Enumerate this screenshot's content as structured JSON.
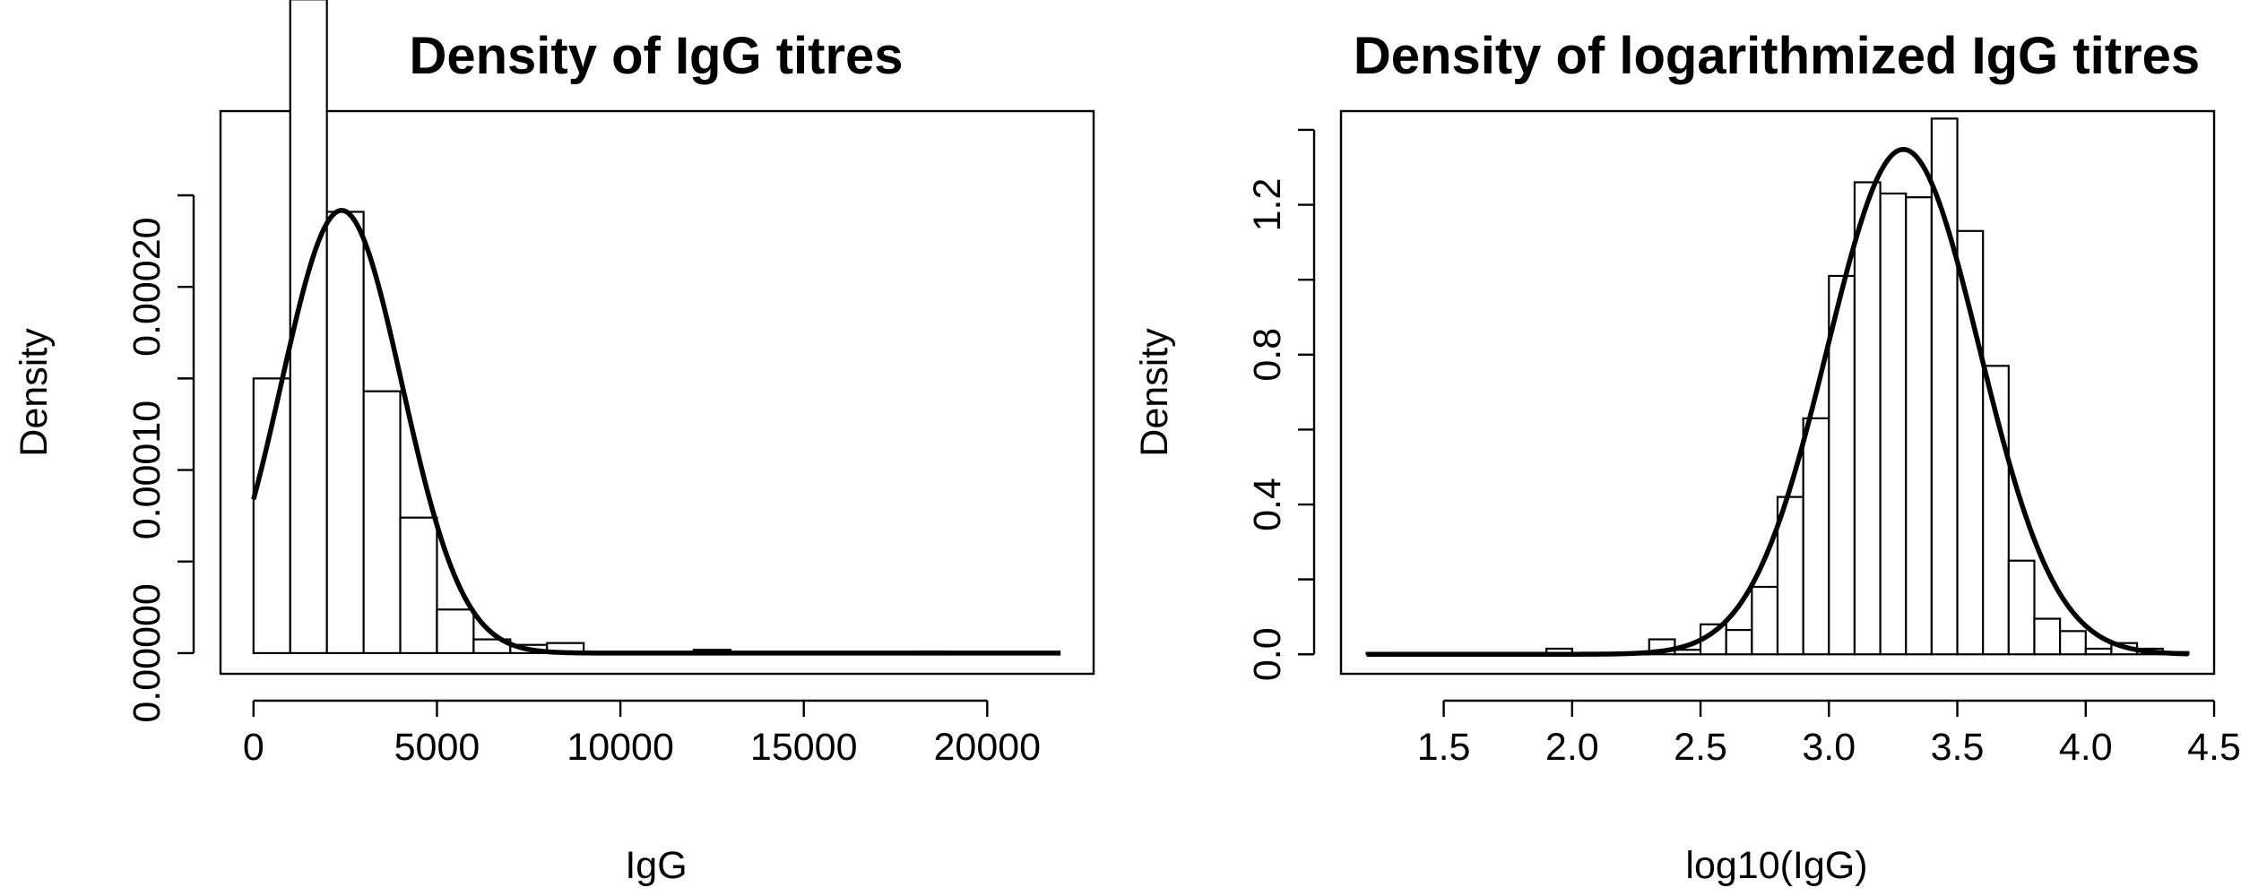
{
  "chart_data": [
    {
      "type": "bar",
      "title": "Density of IgG titres",
      "xlabel": "IgG",
      "ylabel": "Density",
      "xlim": [
        -900,
        22900
      ],
      "ylim": [
        -1.13e-05,
        0.000296
      ],
      "x_ticks": [
        0,
        5000,
        10000,
        15000,
        20000
      ],
      "x_tick_labels": [
        "0",
        "5000",
        "10000",
        "15000",
        "20000"
      ],
      "y_ticks": [
        0,
        5e-05,
        0.0001,
        0.00015,
        0.0002,
        0.00025
      ],
      "y_tick_labels": [
        "0.00000",
        "",
        "0.00010",
        "",
        "0.00020",
        ""
      ],
      "bins": [
        {
          "x0": 0,
          "x1": 1000,
          "density": 0.00015
        },
        {
          "x0": 1000,
          "x1": 2000,
          "density": 0.000357
        },
        {
          "x0": 2000,
          "x1": 3000,
          "density": 0.000241
        },
        {
          "x0": 3000,
          "x1": 4000,
          "density": 0.000143
        },
        {
          "x0": 4000,
          "x1": 5000,
          "density": 7.4e-05
        },
        {
          "x0": 5000,
          "x1": 6000,
          "density": 2.38e-05
        },
        {
          "x0": 6000,
          "x1": 7000,
          "density": 7.5e-06
        },
        {
          "x0": 7000,
          "x1": 8000,
          "density": 4.5e-06
        },
        {
          "x0": 8000,
          "x1": 9000,
          "density": 5.5e-06
        },
        {
          "x0": 9000,
          "x1": 10000,
          "density": 5e-07
        },
        {
          "x0": 10000,
          "x1": 11000,
          "density": 3e-07
        },
        {
          "x0": 11000,
          "x1": 12000,
          "density": 3e-07
        },
        {
          "x0": 12000,
          "x1": 13000,
          "density": 1.8e-06
        },
        {
          "x0": 13000,
          "x1": 14000,
          "density": 3e-07
        },
        {
          "x0": 14000,
          "x1": 15000,
          "density": 3e-07
        },
        {
          "x0": 15000,
          "x1": 16000,
          "density": 3e-07
        },
        {
          "x0": 16000,
          "x1": 17000,
          "density": 3e-07
        },
        {
          "x0": 17000,
          "x1": 18000,
          "density": 3e-07
        },
        {
          "x0": 18000,
          "x1": 19000,
          "density": 8e-07
        },
        {
          "x0": 19000,
          "x1": 20000,
          "density": 3e-07
        },
        {
          "x0": 20000,
          "x1": 21000,
          "density": 3e-07
        },
        {
          "x0": 21000,
          "x1": 21800,
          "density": 3e-07
        }
      ],
      "curve": {
        "kind": "normal",
        "mean": 2400,
        "sd": 1650,
        "x_from": 0,
        "x_to": 22000
      }
    },
    {
      "type": "bar",
      "title": "Density of logarithmized IgG titres",
      "xlabel": "log10(IgG)",
      "ylabel": "Density",
      "xlim": [
        1.1,
        4.5
      ],
      "ylim": [
        -0.052,
        1.45
      ],
      "x_ticks": [
        1.5,
        2.0,
        2.5,
        3.0,
        3.5,
        4.0,
        4.5
      ],
      "x_tick_labels": [
        "1.5",
        "2.0",
        "2.5",
        "3.0",
        "3.5",
        "4.0",
        "4.5"
      ],
      "y_ticks": [
        0,
        0.2,
        0.4,
        0.6,
        0.8,
        1.0,
        1.2,
        1.4
      ],
      "y_tick_labels": [
        "0.0",
        "",
        "0.4",
        "",
        "0.8",
        "",
        "1.2",
        ""
      ],
      "bins": [
        {
          "x0": 1.2,
          "x1": 1.3,
          "density": 0.004
        },
        {
          "x0": 1.3,
          "x1": 1.9,
          "density": 0.002
        },
        {
          "x0": 1.9,
          "x1": 2.0,
          "density": 0.015
        },
        {
          "x0": 2.0,
          "x1": 2.2,
          "density": 0.004
        },
        {
          "x0": 2.2,
          "x1": 2.3,
          "density": 0.002
        },
        {
          "x0": 2.3,
          "x1": 2.4,
          "density": 0.04
        },
        {
          "x0": 2.4,
          "x1": 2.5,
          "density": 0.012
        },
        {
          "x0": 2.5,
          "x1": 2.6,
          "density": 0.08
        },
        {
          "x0": 2.6,
          "x1": 2.7,
          "density": 0.065
        },
        {
          "x0": 2.7,
          "x1": 2.8,
          "density": 0.18
        },
        {
          "x0": 2.8,
          "x1": 2.9,
          "density": 0.42
        },
        {
          "x0": 2.9,
          "x1": 3.0,
          "density": 0.63
        },
        {
          "x0": 3.0,
          "x1": 3.1,
          "density": 1.01
        },
        {
          "x0": 3.1,
          "x1": 3.2,
          "density": 1.26
        },
        {
          "x0": 3.2,
          "x1": 3.3,
          "density": 1.23
        },
        {
          "x0": 3.3,
          "x1": 3.4,
          "density": 1.22
        },
        {
          "x0": 3.4,
          "x1": 3.5,
          "density": 1.43
        },
        {
          "x0": 3.5,
          "x1": 3.6,
          "density": 1.13
        },
        {
          "x0": 3.6,
          "x1": 3.7,
          "density": 0.77
        },
        {
          "x0": 3.7,
          "x1": 3.8,
          "density": 0.25
        },
        {
          "x0": 3.8,
          "x1": 3.9,
          "density": 0.095
        },
        {
          "x0": 3.9,
          "x1": 4.0,
          "density": 0.062
        },
        {
          "x0": 4.0,
          "x1": 4.1,
          "density": 0.015
        },
        {
          "x0": 4.1,
          "x1": 4.2,
          "density": 0.03
        },
        {
          "x0": 4.2,
          "x1": 4.3,
          "density": 0.015
        },
        {
          "x0": 4.3,
          "x1": 4.4,
          "density": 0.006
        }
      ],
      "curve": {
        "kind": "normal",
        "mean": 3.29,
        "sd": 0.296,
        "x_from": 1.2,
        "x_to": 4.4
      }
    }
  ]
}
